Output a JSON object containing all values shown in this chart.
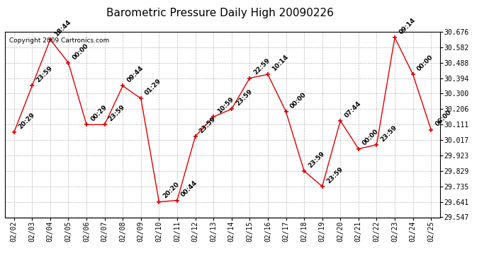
{
  "title": "Barometric Pressure Daily High 20090226",
  "copyright": "Copyright 2009 Cartronics.com",
  "x_labels": [
    "02/02",
    "02/03",
    "02/04",
    "02/05",
    "02/06",
    "02/07",
    "02/08",
    "02/09",
    "02/10",
    "02/11",
    "02/12",
    "02/13",
    "02/14",
    "02/15",
    "02/16",
    "02/17",
    "02/18",
    "02/19",
    "02/20",
    "02/21",
    "02/22",
    "02/23",
    "02/24",
    "02/25"
  ],
  "y_values": [
    30.064,
    30.347,
    30.629,
    30.488,
    30.111,
    30.111,
    30.347,
    30.27,
    29.641,
    29.65,
    30.04,
    30.158,
    30.206,
    30.394,
    30.417,
    30.19,
    29.829,
    29.735,
    30.135,
    29.964,
    29.988,
    30.641,
    30.417,
    30.08
  ],
  "point_labels": [
    "20:29",
    "23:59",
    "18:44",
    "00:00",
    "00:29",
    "23:59",
    "09:44",
    "01:29",
    "20:20",
    "00:44",
    "23:59",
    "10:59",
    "23:59",
    "22:59",
    "10:14",
    "00:00",
    "23:59",
    "23:59",
    "07:44",
    "00:00",
    "23:59",
    "09:14",
    "00:00",
    "06:00"
  ],
  "y_min": 29.547,
  "y_max": 30.676,
  "y_ticks": [
    29.547,
    29.641,
    29.735,
    29.829,
    29.923,
    30.017,
    30.111,
    30.206,
    30.3,
    30.394,
    30.488,
    30.582,
    30.676
  ],
  "line_color": "#dd0000",
  "marker_color": "#dd0000",
  "bg_color": "#ffffff",
  "grid_color": "#bbbbbb",
  "title_fontsize": 11,
  "label_fontsize": 6.5,
  "tick_fontsize": 7,
  "copyright_fontsize": 6.5
}
